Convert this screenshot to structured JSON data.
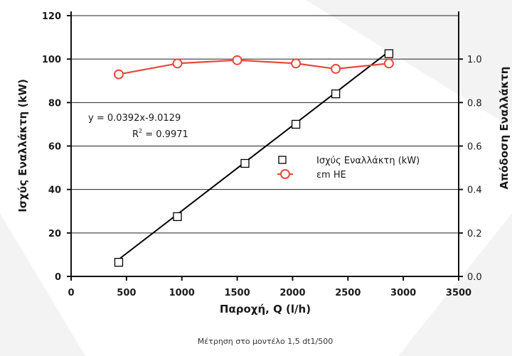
{
  "chart_data": {
    "type": "line",
    "title": "",
    "xlabel": "Παροχή, Q (l/h)",
    "ylabel_left": "Ισχύς Εναλλάκτη (kW)",
    "ylabel_right": "Απόδοση Εναλλάκτη",
    "xlim": [
      0,
      3500
    ],
    "ylim_left": [
      0,
      120
    ],
    "ylim_right": [
      0.0,
      1.2
    ],
    "x_ticks": [
      "0",
      "500",
      "1000",
      "1500",
      "2000",
      "2500",
      "3000",
      "3500"
    ],
    "y_left_ticks": [
      "0",
      "20",
      "40",
      "60",
      "80",
      "100",
      "120"
    ],
    "y_right_ticks": [
      "0.0",
      "0.2",
      "0.4",
      "0.6",
      "0.8",
      "1.0"
    ],
    "grid": "horizontal",
    "legend_position": "center-right",
    "series": [
      {
        "name": "Ισχύς Εναλλάκτη (kW)",
        "axis": "left",
        "marker": "square",
        "color": "#000000",
        "x": [
          430,
          960,
          1570,
          2030,
          2390,
          2870
        ],
        "y": [
          6.5,
          27.5,
          52,
          70,
          84,
          102.5
        ]
      },
      {
        "name": "εm HE",
        "axis": "right",
        "marker": "circle",
        "color": "#e8473d",
        "x": [
          430,
          960,
          1500,
          2030,
          2390,
          2870
        ],
        "y": [
          0.93,
          0.98,
          0.995,
          0.98,
          0.955,
          0.98
        ]
      }
    ],
    "trendline": {
      "series": "Ισχύς Εναλλάκτη (kW)",
      "color": "#000000",
      "slope": 0.0392,
      "intercept": -9.0129
    },
    "annotations": {
      "equation": "y = 0.0392x-9.0129",
      "r2_prefix": "R",
      "r2_sup": "2",
      "r2_suffix": " = 0.9971"
    },
    "caption": "Μέτρηση στο μοντέλο 1,5 dt1/500"
  }
}
